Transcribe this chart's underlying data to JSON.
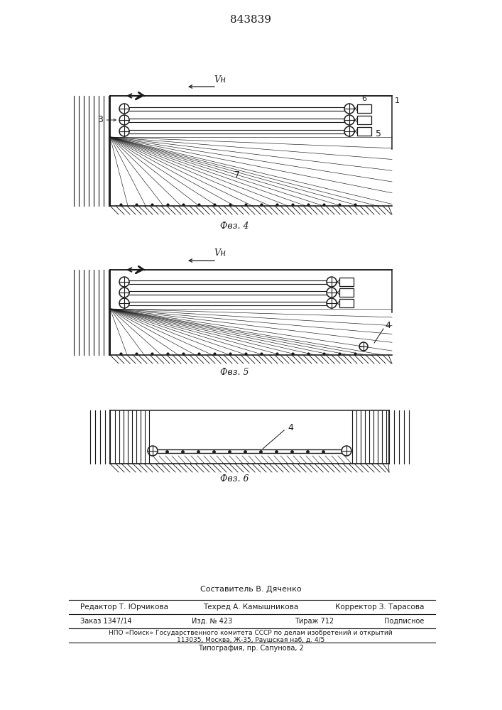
{
  "title": "843839",
  "fig4_label": "Фвз. 4",
  "fig5_label": "Фвз. 5",
  "fig6_label": "Фвз. 6",
  "speed_label": "Vн",
  "label_3": "3",
  "label_4": "4",
  "label_5": "5",
  "label_6": "6",
  "label_7": "7",
  "label_1": "1",
  "footer_compiler": "Составитель В. Дяченко",
  "footer_editor": "Редактор Т. Юрчикова",
  "footer_tech": "Техред А. Камышникова",
  "footer_corrector": "Корректор З. Тарасова",
  "footer_order": "Заказ 1347/14",
  "footer_issue": "Изд. № 423",
  "footer_print": "Тираж 712",
  "footer_subscription": "Подписное",
  "footer_npo": "НПО «Поиск» Государственного комитета СССР по делам изобретений и открытий",
  "footer_address": "113035, Москва, Ж-35, Раушская наб, д. 4/5",
  "footer_typography": "Типография, пр. Сапунова, 2",
  "bg_color": "#ffffff",
  "line_color": "#1a1a1a"
}
